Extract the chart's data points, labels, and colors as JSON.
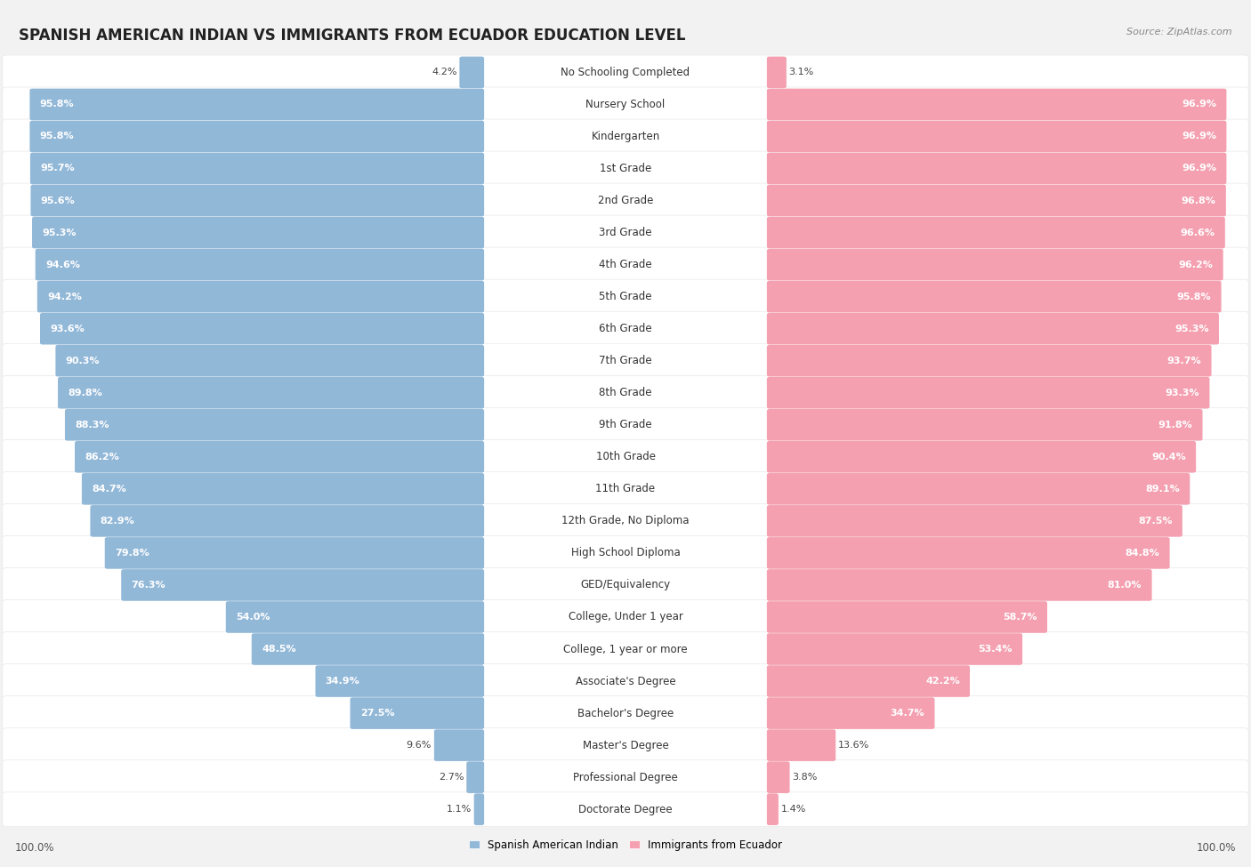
{
  "title": "SPANISH AMERICAN INDIAN VS IMMIGRANTS FROM ECUADOR EDUCATION LEVEL",
  "source": "Source: ZipAtlas.com",
  "categories": [
    "No Schooling Completed",
    "Nursery School",
    "Kindergarten",
    "1st Grade",
    "2nd Grade",
    "3rd Grade",
    "4th Grade",
    "5th Grade",
    "6th Grade",
    "7th Grade",
    "8th Grade",
    "9th Grade",
    "10th Grade",
    "11th Grade",
    "12th Grade, No Diploma",
    "High School Diploma",
    "GED/Equivalency",
    "College, Under 1 year",
    "College, 1 year or more",
    "Associate's Degree",
    "Bachelor's Degree",
    "Master's Degree",
    "Professional Degree",
    "Doctorate Degree"
  ],
  "left_values": [
    4.2,
    95.8,
    95.8,
    95.7,
    95.6,
    95.3,
    94.6,
    94.2,
    93.6,
    90.3,
    89.8,
    88.3,
    86.2,
    84.7,
    82.9,
    79.8,
    76.3,
    54.0,
    48.5,
    34.9,
    27.5,
    9.6,
    2.7,
    1.1
  ],
  "right_values": [
    3.1,
    96.9,
    96.9,
    96.9,
    96.8,
    96.6,
    96.2,
    95.8,
    95.3,
    93.7,
    93.3,
    91.8,
    90.4,
    89.1,
    87.5,
    84.8,
    81.0,
    58.7,
    53.4,
    42.2,
    34.7,
    13.6,
    3.8,
    1.4
  ],
  "left_color": "#92b8d8",
  "right_color": "#f4a0b0",
  "left_label": "Spanish American Indian",
  "right_label": "Immigrants from Ecuador",
  "bg_color": "#f2f2f2",
  "row_light": "#ffffff",
  "row_dark": "#f8f8f8",
  "title_fontsize": 12,
  "label_fontsize": 8.5,
  "bar_label_fontsize": 8,
  "footer_fontsize": 8.5,
  "inside_label_threshold": 20
}
